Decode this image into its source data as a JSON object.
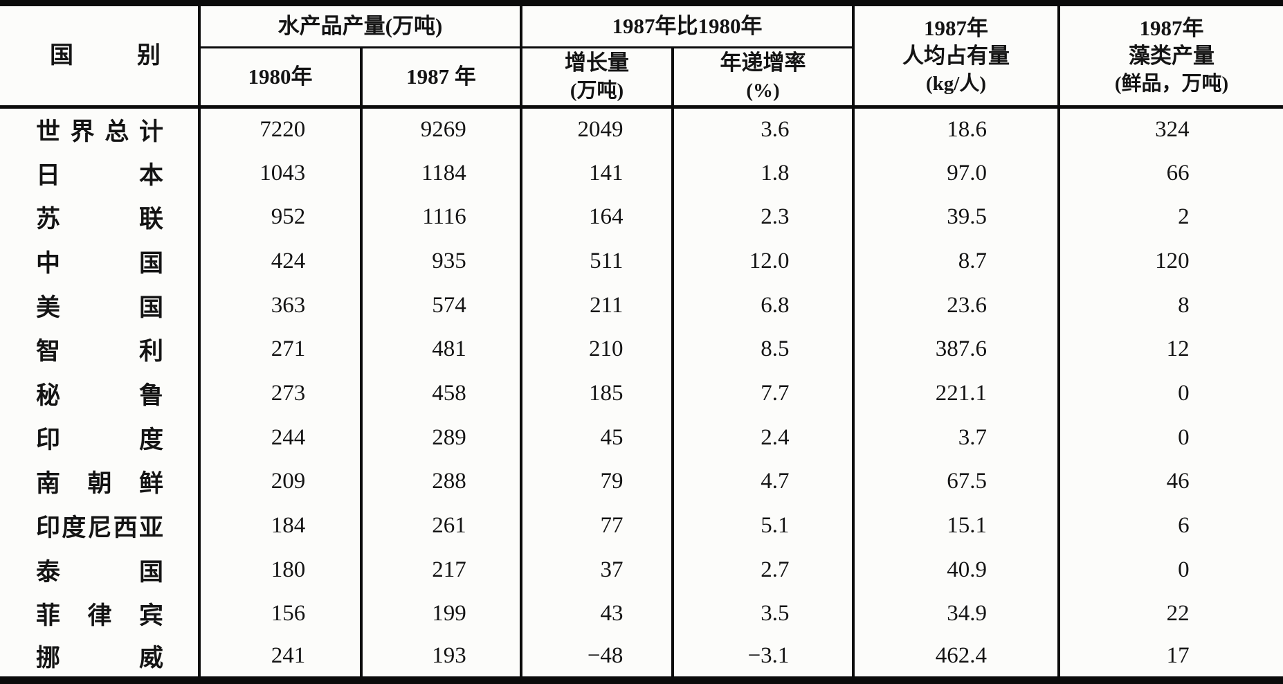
{
  "colors": {
    "paper": "#fcfcfa",
    "ink": "#141414",
    "rule": "#0b0b0b"
  },
  "table": {
    "header": {
      "country": "国别",
      "group_aquatic": "水产品产量(万吨)",
      "group_compare": "1987年比1980年",
      "sub_1980": "1980年",
      "sub_1987": "1987 年",
      "sub_growth_line1": "增长量",
      "sub_growth_line2": "(万吨)",
      "sub_rate_line1": "年递增率",
      "sub_rate_line2": "(%)",
      "percap_line1": "1987年",
      "percap_line2": "人均占有量",
      "percap_line3": "(kg/人)",
      "algae_line1": "1987年",
      "algae_line2": "藻类产量",
      "algae_line3": "(鲜品，万吨)"
    },
    "rows": [
      {
        "country": "世界总计",
        "y1980": "7220",
        "y1987": "9269",
        "growth": "2049",
        "rate": "3.6",
        "percap": "18.6",
        "algae": "324"
      },
      {
        "country": "日本",
        "y1980": "1043",
        "y1987": "1184",
        "growth": "141",
        "rate": "1.8",
        "percap": "97.0",
        "algae": "66"
      },
      {
        "country": "苏联",
        "y1980": "952",
        "y1987": "1116",
        "growth": "164",
        "rate": "2.3",
        "percap": "39.5",
        "algae": "2"
      },
      {
        "country": "中国",
        "y1980": "424",
        "y1987": "935",
        "growth": "511",
        "rate": "12.0",
        "percap": "8.7",
        "algae": "120"
      },
      {
        "country": "美国",
        "y1980": "363",
        "y1987": "574",
        "growth": "211",
        "rate": "6.8",
        "percap": "23.6",
        "algae": "8"
      },
      {
        "country": "智利",
        "y1980": "271",
        "y1987": "481",
        "growth": "210",
        "rate": "8.5",
        "percap": "387.6",
        "algae": "12"
      },
      {
        "country": "秘鲁",
        "y1980": "273",
        "y1987": "458",
        "growth": "185",
        "rate": "7.7",
        "percap": "221.1",
        "algae": "0"
      },
      {
        "country": "印度",
        "y1980": "244",
        "y1987": "289",
        "growth": "45",
        "rate": "2.4",
        "percap": "3.7",
        "algae": "0"
      },
      {
        "country": "南朝鲜",
        "y1980": "209",
        "y1987": "288",
        "growth": "79",
        "rate": "4.7",
        "percap": "67.5",
        "algae": "46"
      },
      {
        "country": "印度尼西亚",
        "y1980": "184",
        "y1987": "261",
        "growth": "77",
        "rate": "5.1",
        "percap": "15.1",
        "algae": "6"
      },
      {
        "country": "泰国",
        "y1980": "180",
        "y1987": "217",
        "growth": "37",
        "rate": "2.7",
        "percap": "40.9",
        "algae": "0"
      },
      {
        "country": "菲律宾",
        "y1980": "156",
        "y1987": "199",
        "growth": "43",
        "rate": "3.5",
        "percap": "34.9",
        "algae": "22"
      },
      {
        "country": "挪威",
        "y1980": "241",
        "y1987": "193",
        "growth": "−48",
        "rate": "−3.1",
        "percap": "462.4",
        "algae": "17"
      }
    ]
  }
}
